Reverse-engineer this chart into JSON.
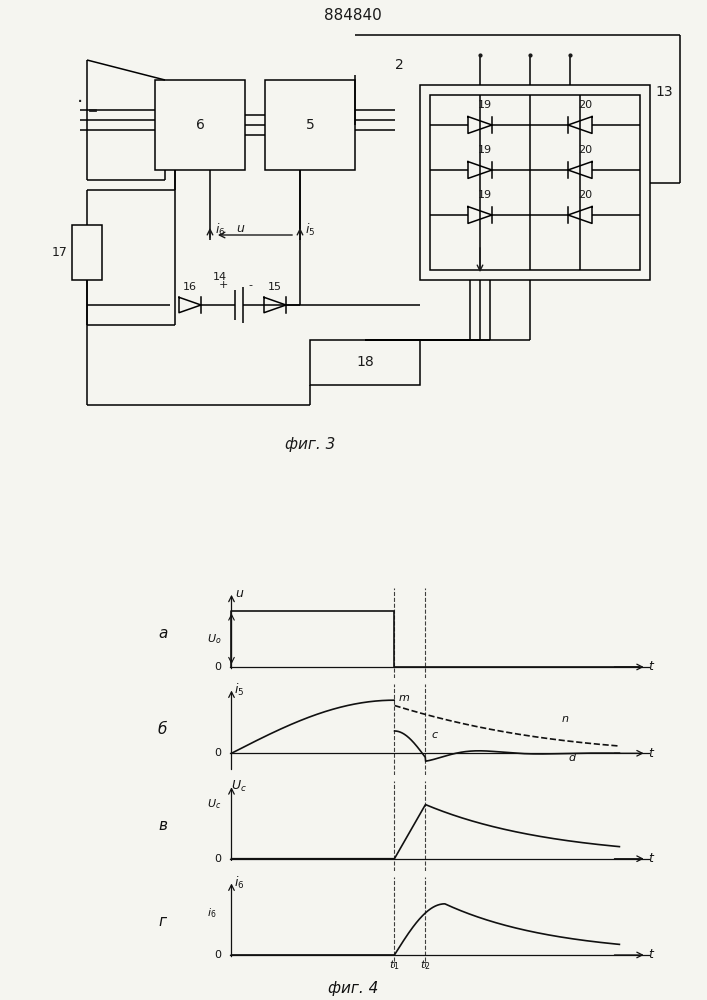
{
  "title": "884840",
  "fig3_caption": "фиг. 3",
  "fig4_caption": "фиг. 4",
  "bg_color": "#f5f5f0",
  "line_color": "#1a1a1a",
  "lw": 1.1
}
